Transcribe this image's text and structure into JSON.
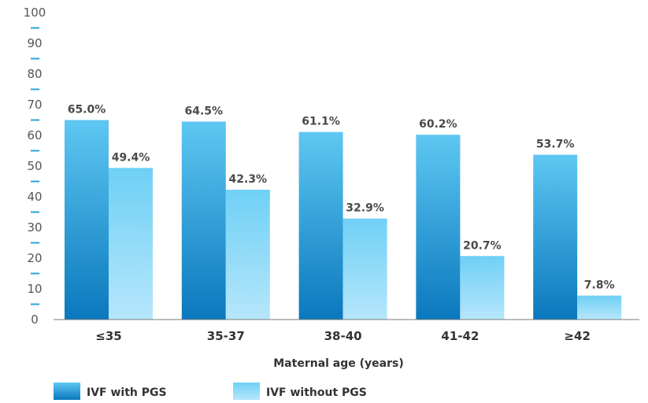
{
  "chart_data": {
    "type": "bar",
    "categories": [
      "≤35",
      "35-37",
      "38-40",
      "41-42",
      "≥42"
    ],
    "series": [
      {
        "name": "IVF with PGS",
        "values": [
          65.0,
          64.5,
          61.1,
          60.2,
          53.7
        ],
        "labels": [
          "65.0%",
          "64.5%",
          "61.1%",
          "60.2%",
          "53.7%"
        ],
        "color_top": "#5ec7f2",
        "color_bottom": "#0a78bd"
      },
      {
        "name": "IVF without PGS",
        "values": [
          49.4,
          42.3,
          32.9,
          20.7,
          7.8
        ],
        "labels": [
          "49.4%",
          "42.3%",
          "32.9%",
          "20.7%",
          "7.8%"
        ],
        "color_top": "#6fd0f5",
        "color_bottom": "#b6e6fb"
      }
    ],
    "yticks": [
      "0",
      "10",
      "20",
      "30",
      "40",
      "50",
      "60",
      "70",
      "80",
      "90",
      "100"
    ],
    "ylim": [
      0,
      100
    ],
    "xlabel": "Maternal age (years)",
    "ylabel": "",
    "grid": false,
    "legend_position": "bottom-left",
    "tick_mark_color": "#2aa3d8"
  }
}
